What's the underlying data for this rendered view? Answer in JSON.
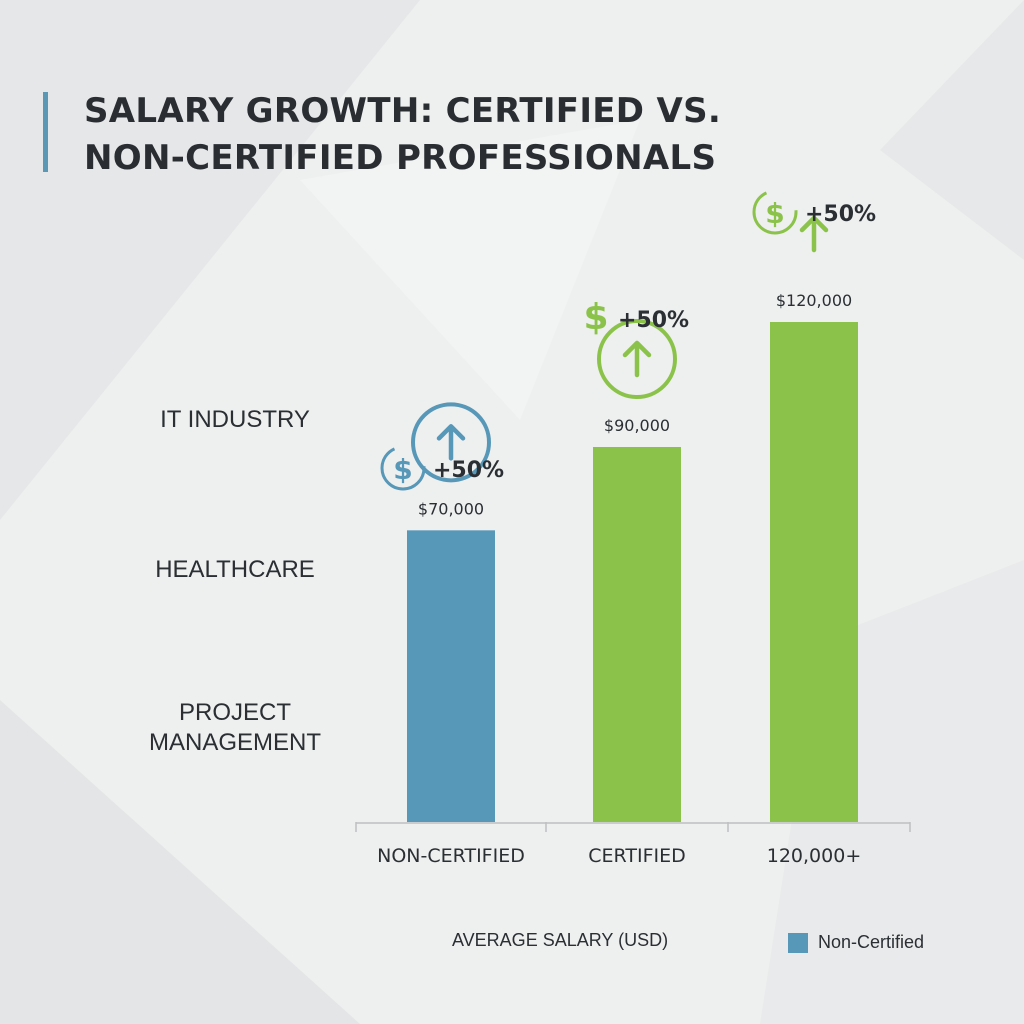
{
  "title": {
    "line1": "SALARY GROWTH: CERTIFIED VS.",
    "line2": "NON-CERTIFIED PROFESSIONALS"
  },
  "row_labels": [
    "IT INDUSTRY",
    "HEALTHCARE",
    "PROJECT MANAGEMENT"
  ],
  "colors": {
    "non_certified": "#5797b7",
    "certified": "#8bc34a",
    "axis": "#bdbfc1",
    "title_accent": "#5a98b6"
  },
  "icons": [
    "dollar-icon",
    "up-arrow-icon"
  ],
  "chart_data": {
    "type": "bar",
    "categories": [
      "NON-CERTIFIED",
      "CERTIFIED",
      "120,000+"
    ],
    "values": [
      70000,
      90000,
      120000
    ],
    "value_labels": [
      "$70,000",
      "$90,000",
      "$120,000"
    ],
    "bar_colors": [
      "#5797b7",
      "#8bc34a",
      "#8bc34a"
    ],
    "growth_labels": [
      "+50%",
      "+50%",
      "+50%"
    ],
    "xlabel": "AVERAGE SALARY (USD)",
    "ylabel": "",
    "ylim": [
      0,
      120000
    ],
    "grid": false,
    "legend": {
      "position": "bottom-right",
      "entries": [
        {
          "name": "Non-Certified",
          "color": "#5797b7"
        }
      ]
    }
  }
}
